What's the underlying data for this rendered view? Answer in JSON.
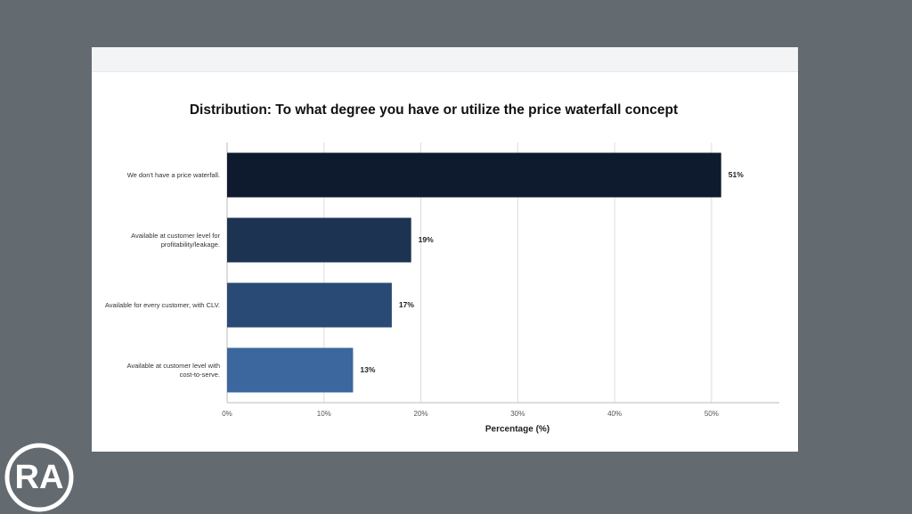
{
  "logo": "RA",
  "chart_data": {
    "type": "barh",
    "title": "Distribution: To what degree you have or utilize the price waterfall concept",
    "x_label": "Percentage (%)",
    "categories": [
      "We don't have a price waterfall.",
      "Available at customer level for\nprofitability/leakage.",
      "Available for every customer, with CLV.",
      "Available at customer level with\ncost-to-serve."
    ],
    "values": [
      51,
      19,
      17,
      13
    ],
    "value_labels": [
      "51%",
      "19%",
      "17%",
      "13%"
    ],
    "colors": [
      "#0e1a2e",
      "#1c3352",
      "#294a74",
      "#3b679e"
    ],
    "xlim": [
      0,
      57
    ],
    "xticks": [
      {
        "value": 0,
        "label": "0%"
      },
      {
        "value": 10,
        "label": "10%"
      },
      {
        "value": 20,
        "label": "20%"
      },
      {
        "value": 30,
        "label": "30%"
      },
      {
        "value": 40,
        "label": "40%"
      },
      {
        "value": 50,
        "label": "50%"
      }
    ],
    "grid": true
  }
}
